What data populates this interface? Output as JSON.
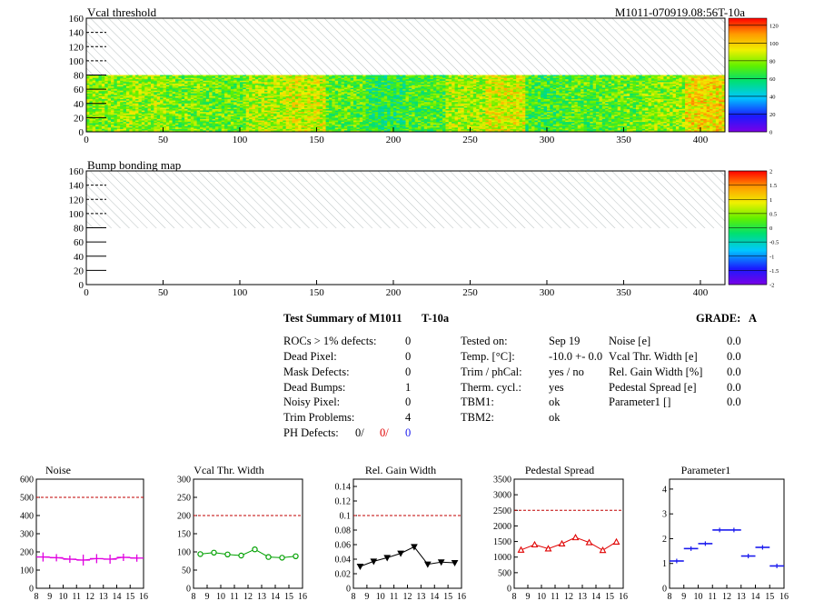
{
  "header": {
    "top_title": "Vcal threshold",
    "top_id": "M1011-070919.08:56T-10a",
    "bump_title": "Bump bonding map"
  },
  "summary": {
    "title": "Test Summary of M1011",
    "temp_tag": "T-10a",
    "grade_label": "GRADE:",
    "grade_value": "A",
    "col1": [
      {
        "label": "ROCs > 1% defects:",
        "value": "0"
      },
      {
        "label": "Dead Pixel:",
        "value": "0"
      },
      {
        "label": "Mask Defects:",
        "value": "0"
      },
      {
        "label": "Dead Bumps:",
        "value": "1"
      },
      {
        "label": "Noisy Pixel:",
        "value": "0"
      },
      {
        "label": "Trim Problems:",
        "value": "4"
      }
    ],
    "ph_defects": {
      "label": "PH Defects:",
      "v1": "0/",
      "v2": "0/",
      "v3": "0"
    },
    "col2": [
      {
        "label": "Tested on:",
        "value": "Sep 19"
      },
      {
        "label": "Temp. [°C]:",
        "value": "-10.0 +- 0.0"
      },
      {
        "label": "Trim / phCal:",
        "value": "yes / no"
      },
      {
        "label": "Therm. cycl.:",
        "value": "yes"
      },
      {
        "label": "TBM1:",
        "value": "ok"
      },
      {
        "label": "TBM2:",
        "value": "ok"
      }
    ],
    "col3": [
      {
        "label": "Noise [e]",
        "value": "0.0"
      },
      {
        "label": "Vcal Thr. Width [e]",
        "value": "0.0"
      },
      {
        "label": "Rel. Gain Width [%]",
        "value": "0.0"
      },
      {
        "label": "Pedestal Spread [e]",
        "value": "0.0"
      },
      {
        "label": "Parameter1 []",
        "value": "0.0"
      }
    ]
  },
  "chart_data": [
    {
      "type": "heatmap",
      "title": "Vcal threshold",
      "xlim": [
        0,
        416
      ],
      "ylim": [
        0,
        160
      ],
      "xticks": [
        0,
        50,
        100,
        150,
        200,
        250,
        300,
        350,
        400
      ],
      "yticks": [
        0,
        20,
        40,
        60,
        80,
        100,
        120,
        140,
        160
      ],
      "filled_rows": [
        0,
        80
      ],
      "hatched_rows": [
        80,
        160
      ],
      "roc_means": [
        78,
        80,
        76,
        74,
        82,
        88,
        72,
        64,
        70,
        82,
        90,
        68,
        72,
        74,
        78,
        96
      ],
      "palette": "rainbow",
      "colorbar": {
        "min": 0,
        "max": 128,
        "ticks": [
          0,
          20,
          40,
          60,
          80,
          100,
          120
        ]
      }
    },
    {
      "type": "heatmap",
      "title": "Bump bonding map",
      "xlim": [
        0,
        416
      ],
      "ylim": [
        0,
        160
      ],
      "xticks": [
        0,
        50,
        100,
        150,
        200,
        250,
        300,
        350,
        400
      ],
      "yticks": [
        0,
        20,
        40,
        60,
        80,
        100,
        120,
        140,
        160
      ],
      "hatched_rows": [
        80,
        160
      ],
      "palette": "rainbow",
      "colorbar": {
        "min": -2,
        "max": 2,
        "ticks": [
          -2,
          -1.5,
          -1,
          -0.5,
          0,
          0.5,
          1,
          1.5,
          2
        ]
      }
    },
    {
      "type": "line",
      "title": "Noise",
      "color": "#e000e0",
      "marker": "cross",
      "x": [
        8.5,
        9.5,
        10.5,
        11.5,
        12.5,
        13.5,
        14.5,
        15.5
      ],
      "values": [
        172,
        168,
        160,
        155,
        163,
        160,
        170,
        166
      ],
      "errors": [
        25,
        20,
        20,
        30,
        25,
        25,
        20,
        20
      ],
      "xlim": [
        8,
        16
      ],
      "xticks": [
        8,
        9,
        10,
        11,
        12,
        13,
        14,
        15,
        16
      ],
      "ylim": [
        0,
        600
      ],
      "yticks": [
        0,
        100,
        200,
        300,
        400,
        500,
        600
      ],
      "ytick_labels": [
        "0",
        "100",
        "200",
        "300",
        "400",
        "500",
        "600"
      ],
      "threshold": 500
    },
    {
      "type": "line",
      "title": "Vcal Thr. Width",
      "color": "#00a000",
      "marker": "circle",
      "x": [
        8.5,
        9.5,
        10.5,
        11.5,
        12.5,
        13.5,
        14.5,
        15.5
      ],
      "values": [
        94,
        98,
        93,
        90,
        107,
        86,
        84,
        88
      ],
      "xlim": [
        8,
        16
      ],
      "xticks": [
        8,
        9,
        10,
        11,
        12,
        13,
        14,
        15,
        16
      ],
      "ylim": [
        0,
        300
      ],
      "yticks": [
        0,
        50,
        100,
        150,
        200,
        250,
        300
      ],
      "ytick_labels": [
        "0",
        "50",
        "100",
        "150",
        "200",
        "250",
        "300"
      ],
      "threshold": 200
    },
    {
      "type": "line",
      "title": "Rel. Gain Width",
      "color": "#000000",
      "marker": "triangle-down",
      "x": [
        8.5,
        9.5,
        10.5,
        11.5,
        12.5,
        13.5,
        14.5,
        15.5
      ],
      "values": [
        0.03,
        0.037,
        0.042,
        0.048,
        0.057,
        0.033,
        0.036,
        0.035
      ],
      "xlim": [
        8,
        16
      ],
      "xticks": [
        8,
        9,
        10,
        11,
        12,
        13,
        14,
        15,
        16
      ],
      "ylim": [
        0,
        0.15
      ],
      "yticks": [
        0,
        0.02,
        0.04,
        0.06,
        0.08,
        0.1,
        0.12,
        0.14
      ],
      "ytick_labels": [
        "0",
        "0.02",
        "0.04",
        "0.06",
        "0.08",
        "0.1",
        "0.12",
        "0.14"
      ],
      "threshold": 0.1
    },
    {
      "type": "line",
      "title": "Pedestal Spread",
      "color": "#e00000",
      "marker": "triangle-up",
      "x": [
        8.5,
        9.5,
        10.5,
        11.5,
        12.5,
        13.5,
        14.5,
        15.5
      ],
      "values": [
        1230,
        1400,
        1270,
        1430,
        1630,
        1470,
        1220,
        1490
      ],
      "xlim": [
        8,
        16
      ],
      "xticks": [
        8,
        9,
        10,
        11,
        12,
        13,
        14,
        15,
        16
      ],
      "ylim": [
        0,
        3500
      ],
      "yticks": [
        0,
        500,
        1000,
        1500,
        2000,
        2500,
        3000,
        3500
      ],
      "ytick_labels": [
        "0",
        "500",
        "1000",
        "1500",
        "2000",
        "2500",
        "3000",
        "3500"
      ],
      "threshold": 2500
    },
    {
      "type": "line",
      "title": "Parameter1",
      "color": "#1a1aee",
      "marker": "hbar",
      "x": [
        8.5,
        9.5,
        10.5,
        11.5,
        12.5,
        13.5,
        14.5,
        15.5
      ],
      "values": [
        1.1,
        1.6,
        1.8,
        2.35,
        2.35,
        1.3,
        1.65,
        0.9
      ],
      "xlim": [
        8,
        16
      ],
      "xticks": [
        8,
        9,
        10,
        11,
        12,
        13,
        14,
        15,
        16
      ],
      "ylim": [
        0,
        4.4
      ],
      "yticks": [
        0,
        1,
        2,
        3,
        4
      ],
      "ytick_labels": [
        "0",
        "1",
        "2",
        "3",
        "4"
      ],
      "threshold": null
    }
  ]
}
